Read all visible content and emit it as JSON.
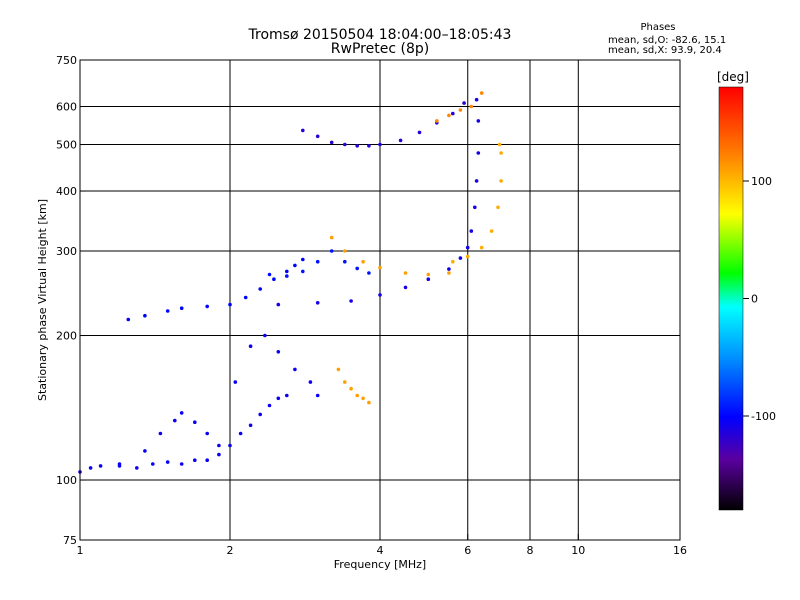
{
  "chart_data": {
    "type": "scatter",
    "title": "Tromsø 20150504 18:04:00–18:05:43",
    "subtitle": "RwPretec (8p)",
    "xlabel": "Frequency [MHz]",
    "ylabel": "Stationary phase Virtual Height [km]",
    "x_scale": "log",
    "y_scale": "log",
    "xlim": [
      1,
      16
    ],
    "ylim": [
      75,
      750
    ],
    "x_ticks": [
      1,
      2,
      4,
      6,
      8,
      10,
      16
    ],
    "y_ticks": [
      75,
      100,
      200,
      300,
      400,
      500,
      600,
      750
    ],
    "x_grid": [
      1,
      2,
      4,
      6,
      8,
      10
    ],
    "y_grid": [
      100,
      200,
      300,
      400,
      500,
      600
    ],
    "grid": true,
    "colorbar": {
      "label": "[deg]",
      "min": -180,
      "max": 180,
      "ticks": [
        100,
        0,
        -100
      ]
    },
    "stats": {
      "heading": "Phases",
      "line1": "mean, sd,O: -82.6, 15.1",
      "line2": "mean, sd,X:  93.9, 20.4"
    },
    "series": [
      {
        "phase": -105,
        "points": [
          [
            1.0,
            104
          ],
          [
            1.05,
            106
          ],
          [
            1.1,
            107
          ],
          [
            1.2,
            107
          ],
          [
            1.3,
            106
          ],
          [
            1.4,
            108
          ],
          [
            1.5,
            109
          ],
          [
            1.6,
            108
          ],
          [
            1.7,
            110
          ],
          [
            1.8,
            110
          ],
          [
            1.9,
            113
          ],
          [
            2.0,
            118
          ],
          [
            2.1,
            125
          ],
          [
            2.2,
            130
          ],
          [
            2.3,
            137
          ],
          [
            2.4,
            143
          ],
          [
            2.5,
            148
          ],
          [
            2.6,
            150
          ]
        ]
      },
      {
        "phase": -105,
        "points": [
          [
            1.2,
            108
          ],
          [
            1.35,
            115
          ],
          [
            1.45,
            125
          ],
          [
            1.55,
            133
          ],
          [
            1.6,
            138
          ],
          [
            1.7,
            132
          ],
          [
            1.8,
            125
          ],
          [
            1.9,
            118
          ],
          [
            2.05,
            160
          ],
          [
            2.2,
            190
          ],
          [
            2.35,
            200
          ],
          [
            2.5,
            185
          ],
          [
            2.7,
            170
          ],
          [
            2.9,
            160
          ],
          [
            3.0,
            150
          ]
        ]
      },
      {
        "phase": -100,
        "points": [
          [
            1.25,
            216
          ],
          [
            1.35,
            220
          ],
          [
            1.5,
            225
          ],
          [
            1.6,
            228
          ],
          [
            1.8,
            230
          ],
          [
            2.0,
            232
          ],
          [
            2.15,
            240
          ],
          [
            2.3,
            250
          ],
          [
            2.45,
            262
          ],
          [
            2.6,
            272
          ],
          [
            2.7,
            280
          ],
          [
            2.8,
            288
          ]
        ]
      },
      {
        "phase": -95,
        "points": [
          [
            2.4,
            268
          ],
          [
            2.6,
            266
          ],
          [
            2.8,
            272
          ],
          [
            3.0,
            285
          ],
          [
            3.2,
            300
          ],
          [
            3.4,
            285
          ],
          [
            3.6,
            276
          ],
          [
            3.8,
            270
          ]
        ]
      },
      {
        "phase": -110,
        "points": [
          [
            2.5,
            232
          ],
          [
            3.0,
            234
          ],
          [
            3.5,
            236
          ],
          [
            4.0,
            243
          ],
          [
            4.5,
            252
          ],
          [
            5.0,
            262
          ],
          [
            5.5,
            275
          ],
          [
            5.8,
            290
          ],
          [
            6.0,
            305
          ],
          [
            6.1,
            330
          ],
          [
            6.2,
            370
          ],
          [
            6.25,
            420
          ],
          [
            6.3,
            480
          ],
          [
            6.3,
            560
          ],
          [
            6.25,
            620
          ]
        ]
      },
      {
        "phase": 110,
        "points": [
          [
            3.2,
            320
          ],
          [
            3.4,
            300
          ],
          [
            3.7,
            285
          ],
          [
            4.0,
            277
          ],
          [
            4.5,
            270
          ],
          [
            5.0,
            268
          ],
          [
            5.5,
            270
          ]
        ]
      },
      {
        "phase": 105,
        "points": [
          [
            5.6,
            285
          ],
          [
            6.0,
            292
          ],
          [
            6.4,
            305
          ],
          [
            6.7,
            330
          ],
          [
            6.9,
            370
          ],
          [
            7.0,
            420
          ],
          [
            7.0,
            480
          ],
          [
            6.95,
            500
          ]
        ]
      },
      {
        "phase": -115,
        "points": [
          [
            2.8,
            535
          ],
          [
            3.0,
            520
          ],
          [
            3.2,
            505
          ],
          [
            3.4,
            500
          ],
          [
            3.6,
            497
          ],
          [
            3.8,
            497
          ],
          [
            4.0,
            500
          ],
          [
            4.4,
            510
          ],
          [
            4.8,
            530
          ],
          [
            5.2,
            555
          ],
          [
            5.6,
            580
          ],
          [
            5.9,
            610
          ]
        ]
      },
      {
        "phase": 110,
        "points": [
          [
            3.3,
            170
          ],
          [
            3.4,
            160
          ],
          [
            3.5,
            155
          ],
          [
            3.6,
            150
          ],
          [
            3.7,
            148
          ],
          [
            3.8,
            145
          ]
        ]
      },
      {
        "phase": 120,
        "points": [
          [
            5.2,
            560
          ],
          [
            5.5,
            575
          ],
          [
            5.8,
            590
          ],
          [
            6.1,
            600
          ],
          [
            6.4,
            640
          ]
        ]
      }
    ]
  }
}
